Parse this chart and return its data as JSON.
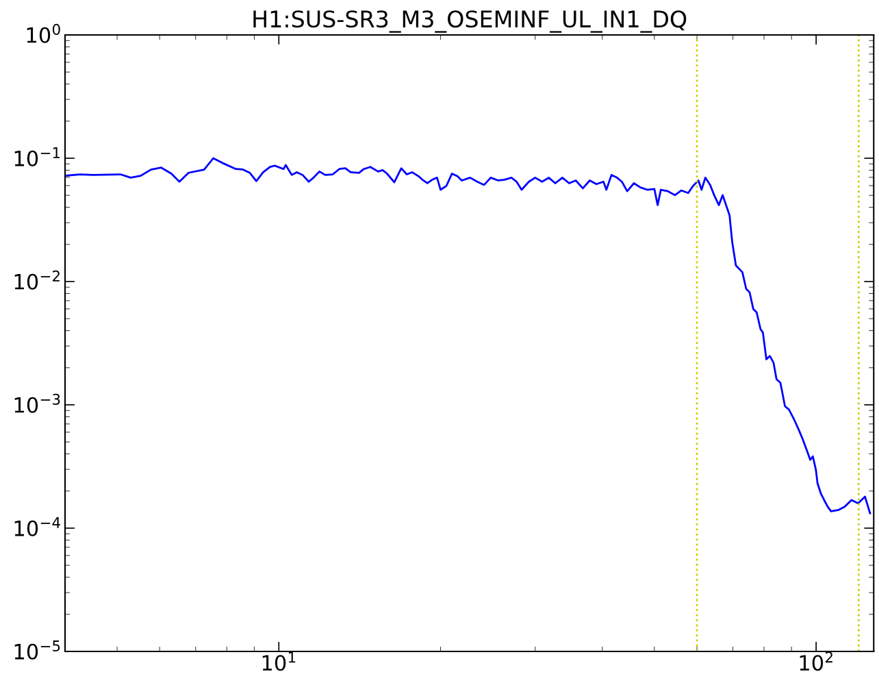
{
  "chart_data": {
    "type": "line",
    "title": "H1:SUS-SR3_M3_OSEMINF_UL_IN1_DQ",
    "log": "xy",
    "grid": false,
    "legend": false,
    "marker": "none",
    "line_style": "solid",
    "xlim": [
      4,
      128
    ],
    "ylim": [
      1e-05,
      1
    ],
    "xticks": [
      {
        "value": 10,
        "label": "10$^{1}$"
      },
      {
        "value": 100,
        "label": "10$^{2}$"
      }
    ],
    "yticks": [
      {
        "value": 1e-05,
        "label": "10$^{−5}$"
      },
      {
        "value": 0.0001,
        "label": "10$^{−4}$"
      },
      {
        "value": 0.001,
        "label": "10$^{−3}$"
      },
      {
        "value": 0.01,
        "label": "10$^{−2}$"
      },
      {
        "value": 0.1,
        "label": "10$^{−1}$"
      },
      {
        "value": 1,
        "label": "10$^{0}$"
      }
    ],
    "ref_lines": [
      {
        "axis": "x",
        "value": 60,
        "color": "#cccc00",
        "line_style": "dotted"
      },
      {
        "axis": "x",
        "value": 120,
        "color": "#cccc00",
        "line_style": "dotted"
      }
    ],
    "series": [
      {
        "color": "#0000ff",
        "x": [
          4.02,
          4.26,
          4.51,
          5.07,
          5.3,
          5.53,
          5.78,
          6.04,
          6.31,
          6.53,
          6.79,
          7.26,
          7.55,
          7.85,
          8.32,
          8.57,
          8.83,
          9.08,
          9.35,
          9.63,
          9.83,
          10.2,
          10.3,
          10.57,
          10.8,
          11.07,
          11.37,
          11.6,
          11.9,
          12.2,
          12.6,
          12.96,
          13.3,
          13.6,
          14.1,
          14.4,
          14.8,
          15.3,
          15.6,
          15.9,
          16.4,
          16.9,
          17.3,
          17.7,
          18.2,
          18.5,
          18.9,
          19.3,
          19.7,
          20.0,
          20.5,
          21.0,
          21.5,
          21.9,
          22.7,
          23.4,
          24.1,
          24.8,
          25.6,
          26.3,
          27.1,
          27.7,
          28.3,
          29.2,
          30.0,
          30.9,
          31.8,
          32.7,
          33.7,
          34.7,
          35.7,
          36.8,
          37.9,
          39.0,
          40.2,
          40.7,
          41.6,
          42.6,
          43.5,
          44.5,
          45.8,
          47.1,
          48.5,
          50.0,
          50.7,
          51.4,
          53.0,
          54.6,
          56.1,
          57.8,
          59.0,
          60.4,
          61.2,
          62.2,
          63.5,
          64.6,
          65.9,
          67.0,
          69.0,
          69.8,
          70.9,
          72.9,
          74.1,
          75.2,
          76.4,
          77.5,
          78.8,
          79.6,
          80.8,
          82.0,
          83.3,
          84.4,
          85.8,
          87.5,
          89.0,
          91.0,
          92.8,
          94.5,
          96.0,
          97.5,
          98.6,
          99.9,
          100.6,
          102,
          103.5,
          105.1,
          106.6,
          109.9,
          113,
          116.4,
          119.7,
          123.3,
          126
        ],
        "values": [
          0.0722,
          0.074,
          0.0732,
          0.074,
          0.0696,
          0.072,
          0.0809,
          0.0839,
          0.075,
          0.0645,
          0.0762,
          0.0809,
          0.1,
          0.0916,
          0.0818,
          0.081,
          0.0762,
          0.0653,
          0.077,
          0.085,
          0.087,
          0.0818,
          0.088,
          0.0732,
          0.077,
          0.0732,
          0.0645,
          0.0696,
          0.078,
          0.0732,
          0.074,
          0.0818,
          0.083,
          0.077,
          0.076,
          0.0818,
          0.085,
          0.078,
          0.08,
          0.075,
          0.0639,
          0.0829,
          0.074,
          0.077,
          0.0714,
          0.067,
          0.0627,
          0.067,
          0.0696,
          0.0555,
          0.0596,
          0.075,
          0.0714,
          0.066,
          0.0696,
          0.0645,
          0.0608,
          0.0696,
          0.066,
          0.067,
          0.0696,
          0.0645,
          0.0555,
          0.0645,
          0.0696,
          0.0645,
          0.0696,
          0.0627,
          0.0696,
          0.0627,
          0.066,
          0.057,
          0.066,
          0.0617,
          0.0645,
          0.0555,
          0.0732,
          0.0696,
          0.0645,
          0.054,
          0.0627,
          0.058,
          0.0555,
          0.0563,
          0.0417,
          0.0555,
          0.054,
          0.0502,
          0.0548,
          0.0522,
          0.0596,
          0.066,
          0.0555,
          0.0696,
          0.0608,
          0.0502,
          0.0417,
          0.0502,
          0.0345,
          0.0209,
          0.0135,
          0.0119,
          0.00871,
          0.00818,
          0.00598,
          0.00562,
          0.00411,
          0.00386,
          0.00234,
          0.00249,
          0.0022,
          0.00161,
          0.00151,
          0.000975,
          0.000916,
          0.00076,
          0.00063,
          0.000521,
          0.000433,
          0.000358,
          0.000382,
          0.000297,
          0.000231,
          0.000192,
          0.000169,
          0.000149,
          0.000137,
          0.00014,
          0.000149,
          0.000169,
          0.000159,
          0.00018,
          0.000132
        ]
      }
    ]
  }
}
